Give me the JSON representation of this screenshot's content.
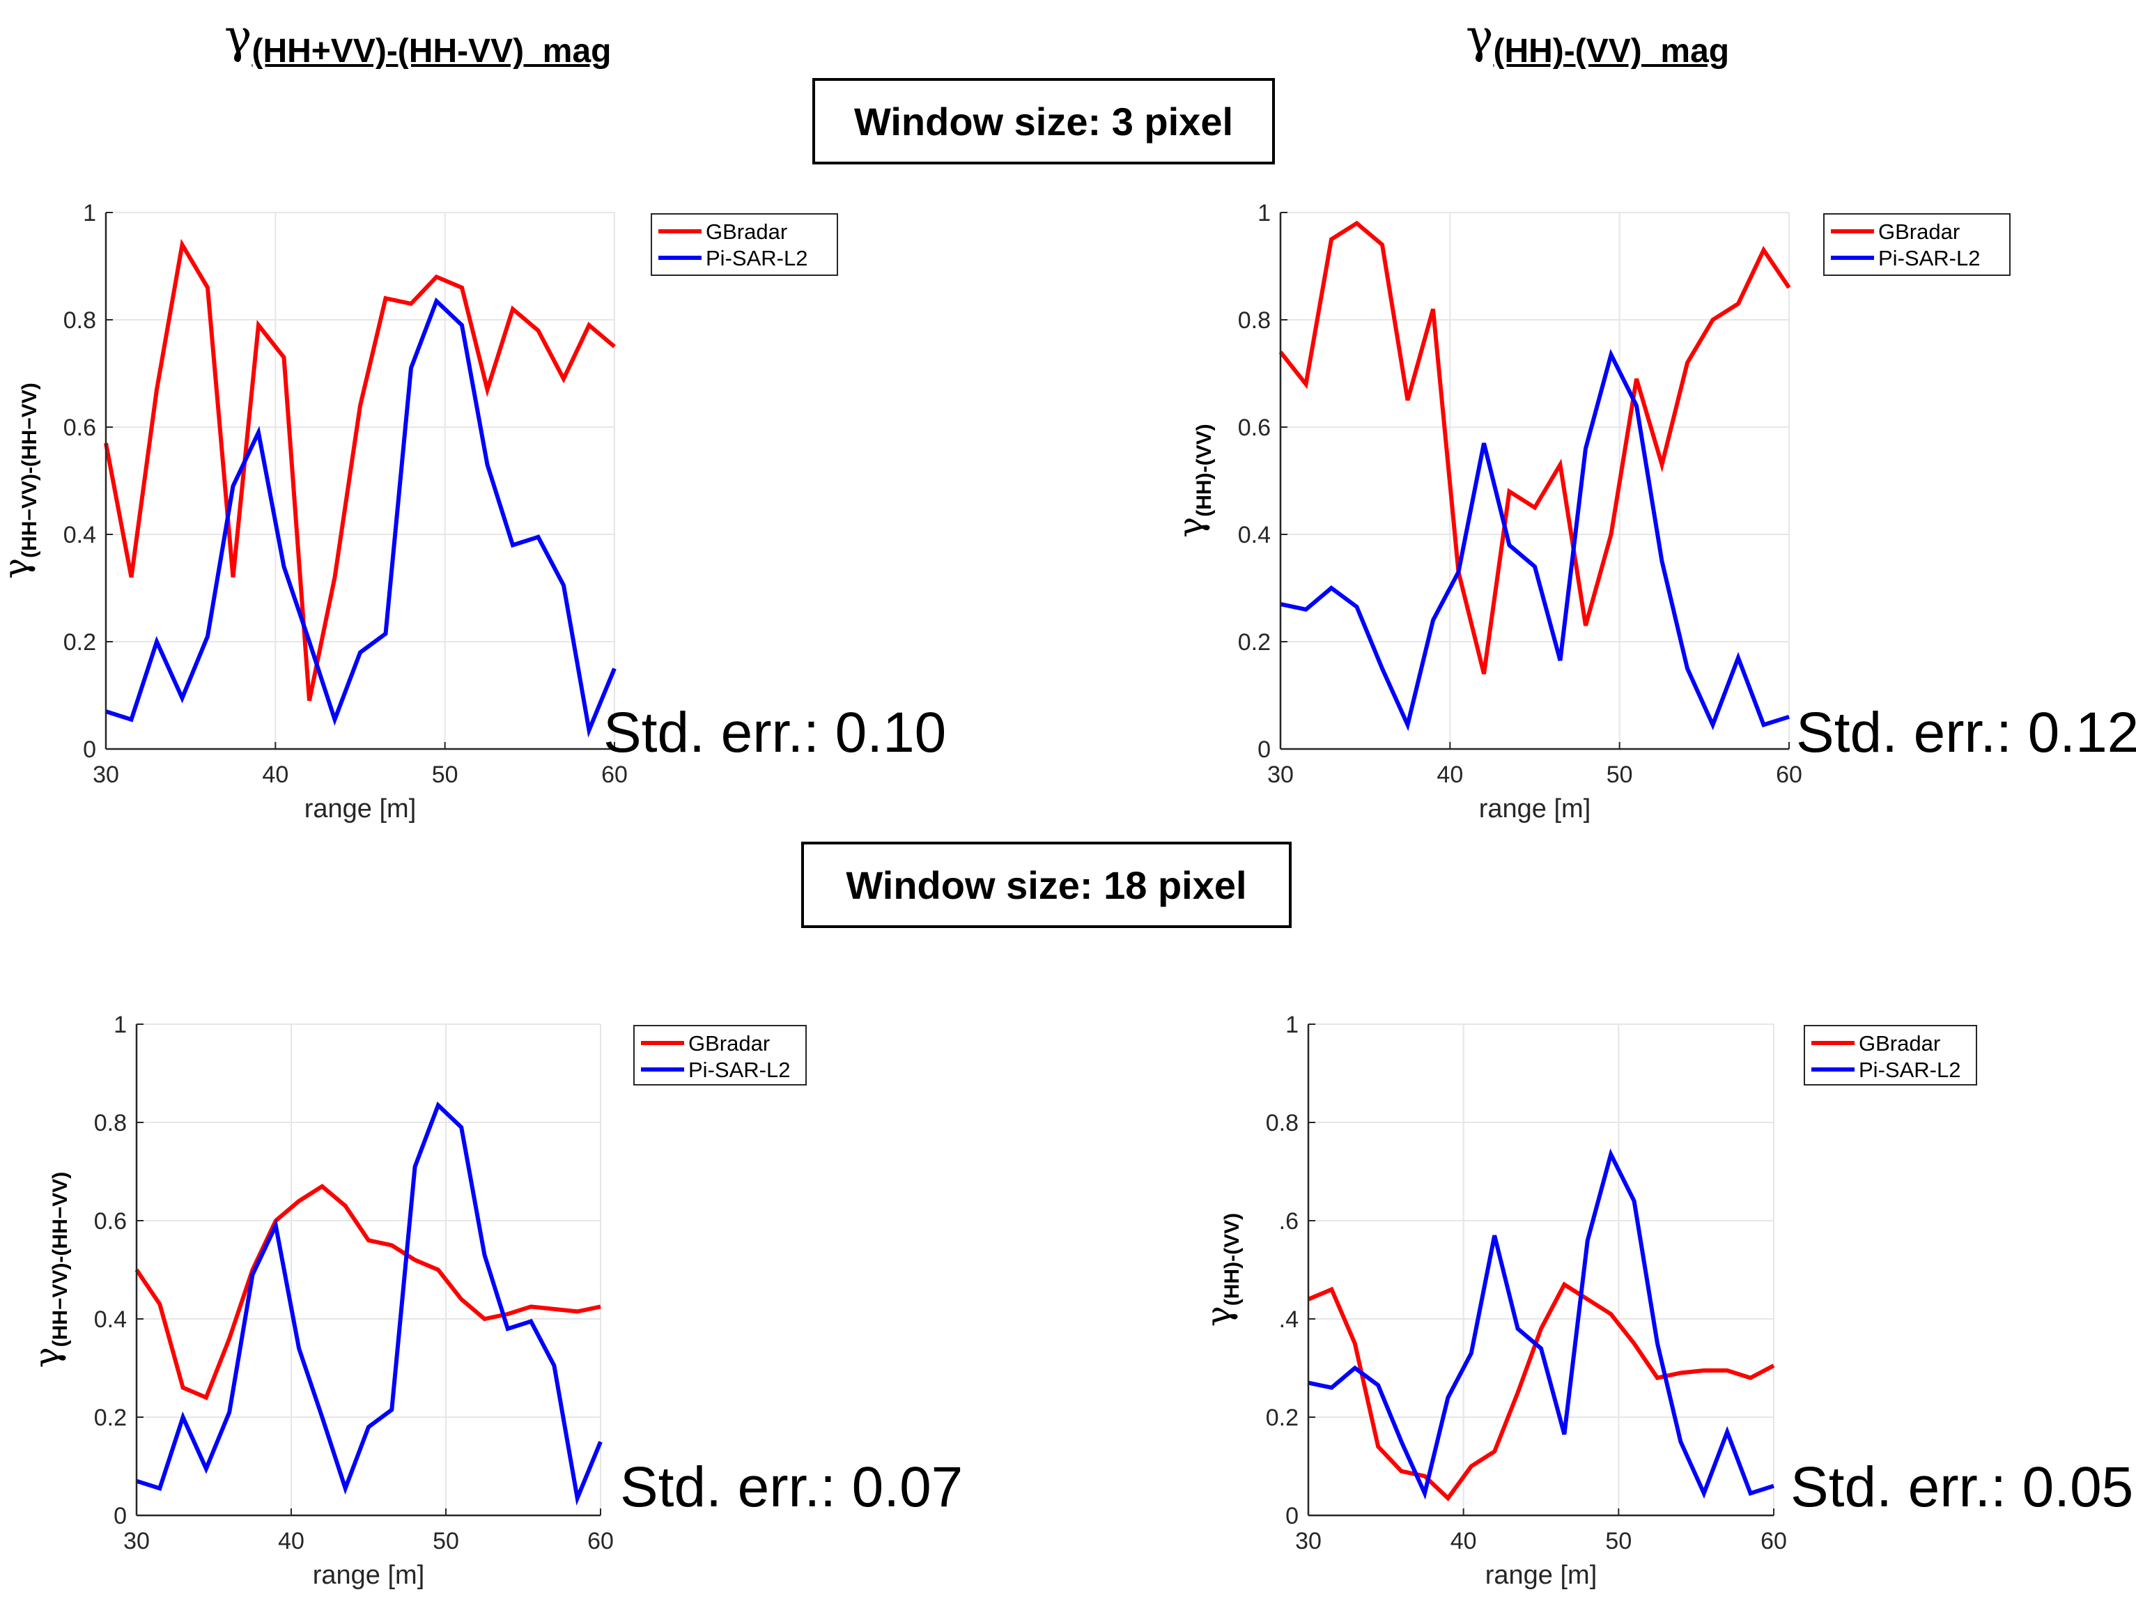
{
  "column_titles": [
    {
      "symbol": "γ",
      "subscript": "(HH+VV)-(HH-VV)_mag"
    },
    {
      "symbol": "γ",
      "subscript": "(HH)-(VV)_mag"
    }
  ],
  "window_labels": [
    "Window size: 3 pixel",
    "Window size: 18 pixel"
  ],
  "std_errors": [
    "Std. err.: 0.10",
    "Std. err.: 0.12",
    "Std. err.: 0.07",
    "Std. err.: 0.05"
  ],
  "colors": {
    "gbradar": "#ff0000",
    "pisar": "#0000ff",
    "grid": "#e6e6e6",
    "axis": "#262626"
  },
  "chart_data": [
    {
      "type": "line",
      "title": "",
      "xlabel": "range [m]",
      "ylabel_symbol": "γ",
      "ylabel_sub": "(HH−VV)-(HH−VV)",
      "xlim": [
        30,
        60
      ],
      "ylim": [
        0,
        1
      ],
      "xticks": [
        "30",
        "40",
        "50",
        "60"
      ],
      "yticks": [
        "0",
        "0.2",
        "0.4",
        "0.6",
        "0.8",
        "1"
      ],
      "legend": "top-right",
      "x": [
        30,
        31.5,
        33,
        34.5,
        36,
        37.5,
        39,
        40.5,
        42,
        43.5,
        45,
        46.5,
        48,
        49.5,
        51,
        52.5,
        54,
        55.5,
        57,
        58.5,
        60
      ],
      "series": [
        {
          "name": "GBradar",
          "values": [
            0.57,
            0.32,
            0.67,
            0.94,
            0.86,
            0.32,
            0.79,
            0.73,
            0.09,
            0.32,
            0.64,
            0.84,
            0.83,
            0.88,
            0.86,
            0.67,
            0.82,
            0.78,
            0.69,
            0.79,
            0.75
          ]
        },
        {
          "name": "Pi-SAR-L2",
          "values": [
            0.07,
            0.055,
            0.2,
            0.095,
            0.21,
            0.49,
            0.59,
            0.34,
            0.2,
            0.055,
            0.18,
            0.215,
            0.71,
            0.835,
            0.79,
            0.53,
            0.38,
            0.395,
            0.305,
            0.035,
            0.15
          ]
        }
      ]
    },
    {
      "type": "line",
      "title": "",
      "xlabel": "range [m]",
      "ylabel_symbol": "γ",
      "ylabel_sub": "(HH)-(VV)",
      "xlim": [
        30,
        60
      ],
      "ylim": [
        0,
        1
      ],
      "xticks": [
        "30",
        "40",
        "50",
        "60"
      ],
      "yticks": [
        "0",
        "0.2",
        "0.4",
        "0.6",
        "0.8",
        "1"
      ],
      "legend": "top-right",
      "x": [
        30,
        31.5,
        33,
        34.5,
        36,
        37.5,
        39,
        40.5,
        42,
        43.5,
        45,
        46.5,
        48,
        49.5,
        51,
        52.5,
        54,
        55.5,
        57,
        58.5,
        60
      ],
      "series": [
        {
          "name": "GBradar",
          "values": [
            0.74,
            0.68,
            0.95,
            0.98,
            0.94,
            0.65,
            0.82,
            0.33,
            0.14,
            0.48,
            0.45,
            0.53,
            0.23,
            0.4,
            0.69,
            0.53,
            0.72,
            0.8,
            0.83,
            0.93,
            0.86
          ]
        },
        {
          "name": "Pi-SAR-L2",
          "values": [
            0.27,
            0.26,
            0.3,
            0.265,
            0.15,
            0.045,
            0.24,
            0.33,
            0.57,
            0.38,
            0.34,
            0.165,
            0.56,
            0.735,
            0.64,
            0.35,
            0.15,
            0.045,
            0.17,
            0.045,
            0.06
          ]
        }
      ]
    },
    {
      "type": "line",
      "title": "",
      "xlabel": "range [m]",
      "ylabel_symbol": "γ",
      "ylabel_sub": "(HH−VV)-(HH−VV)",
      "xlim": [
        30,
        60
      ],
      "ylim": [
        0,
        1
      ],
      "xticks": [
        "30",
        "40",
        "50",
        "60"
      ],
      "yticks": [
        "0",
        "0.2",
        "0.4",
        "0.6",
        "0.8",
        "1"
      ],
      "legend": "top-right",
      "x": [
        30,
        31.5,
        33,
        34.5,
        36,
        37.5,
        39,
        40.5,
        42,
        43.5,
        45,
        46.5,
        48,
        49.5,
        51,
        52.5,
        54,
        55.5,
        57,
        58.5,
        60
      ],
      "series": [
        {
          "name": "GBradar",
          "values": [
            0.5,
            0.43,
            0.26,
            0.24,
            0.36,
            0.5,
            0.6,
            0.64,
            0.67,
            0.63,
            0.56,
            0.55,
            0.52,
            0.5,
            0.44,
            0.4,
            0.41,
            0.425,
            0.42,
            0.415,
            0.425
          ]
        },
        {
          "name": "Pi-SAR-L2",
          "values": [
            0.07,
            0.055,
            0.2,
            0.095,
            0.21,
            0.49,
            0.59,
            0.34,
            0.2,
            0.055,
            0.18,
            0.215,
            0.71,
            0.835,
            0.79,
            0.53,
            0.38,
            0.395,
            0.305,
            0.035,
            0.15
          ]
        }
      ]
    },
    {
      "type": "line",
      "title": "",
      "xlabel": "range [m]",
      "ylabel_symbol": "γ",
      "ylabel_sub": "(HH)-(VV)",
      "xlim": [
        30,
        60
      ],
      "ylim": [
        0,
        1
      ],
      "xticks": [
        "30",
        "40",
        "50",
        "60"
      ],
      "yticks": [
        "0",
        "0.2",
        ".4",
        ".6",
        "0.8",
        "1"
      ],
      "legend": "top-right",
      "x": [
        30,
        31.5,
        33,
        34.5,
        36,
        37.5,
        39,
        40.5,
        42,
        43.5,
        45,
        46.5,
        48,
        49.5,
        51,
        52.5,
        54,
        55.5,
        57,
        58.5,
        60
      ],
      "series": [
        {
          "name": "GBradar",
          "values": [
            0.44,
            0.46,
            0.35,
            0.14,
            0.09,
            0.08,
            0.035,
            0.1,
            0.13,
            0.25,
            0.38,
            0.47,
            0.44,
            0.41,
            0.35,
            0.28,
            0.29,
            0.295,
            0.295,
            0.28,
            0.305
          ]
        },
        {
          "name": "Pi-SAR-L2",
          "values": [
            0.27,
            0.26,
            0.3,
            0.265,
            0.15,
            0.045,
            0.24,
            0.33,
            0.57,
            0.38,
            0.34,
            0.165,
            0.56,
            0.735,
            0.64,
            0.35,
            0.15,
            0.045,
            0.17,
            0.045,
            0.06
          ]
        }
      ]
    }
  ]
}
